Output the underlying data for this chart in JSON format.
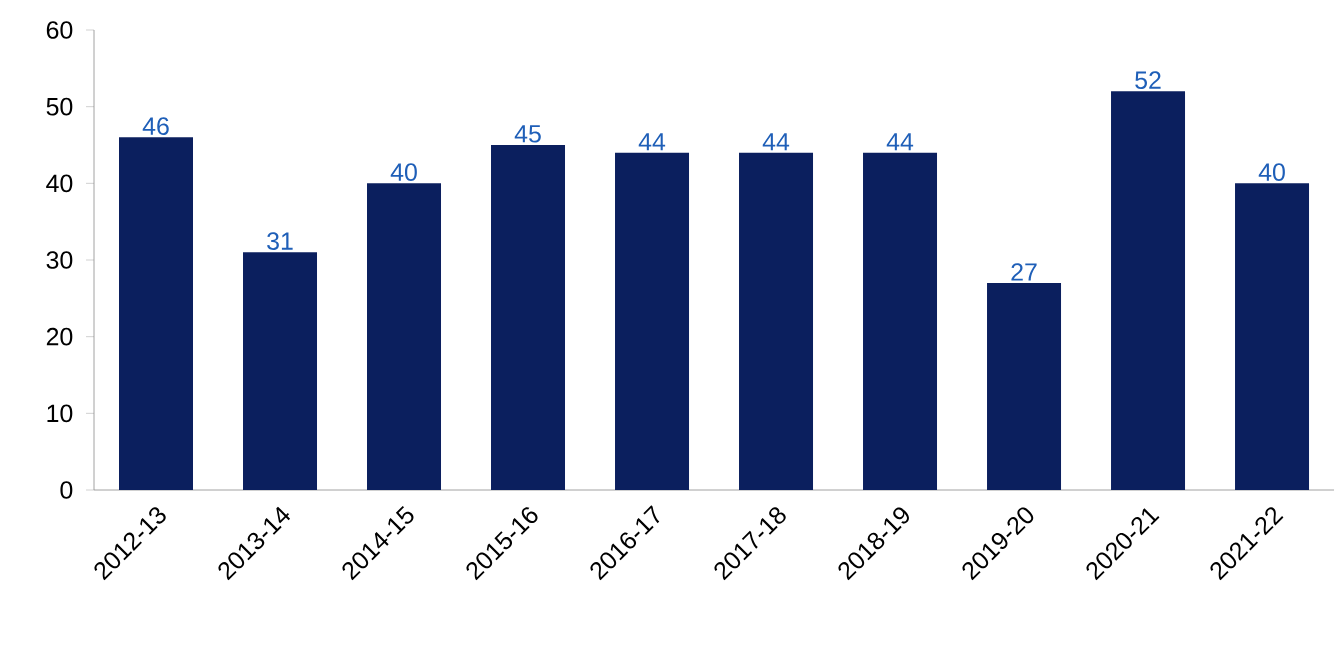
{
  "chart_data": {
    "type": "bar",
    "categories": [
      "2012-13",
      "2013-14",
      "2014-15",
      "2015-16",
      "2016-17",
      "2017-18",
      "2018-19",
      "2019-20",
      "2020-21",
      "2021-22"
    ],
    "values": [
      46,
      31,
      40,
      45,
      44,
      44,
      44,
      27,
      52,
      40
    ],
    "color": "#0b1f5e",
    "ylim": [
      0,
      60
    ],
    "yticks": [
      0,
      10,
      20,
      30,
      40,
      50,
      60
    ],
    "data_labels": true,
    "grid": false
  }
}
